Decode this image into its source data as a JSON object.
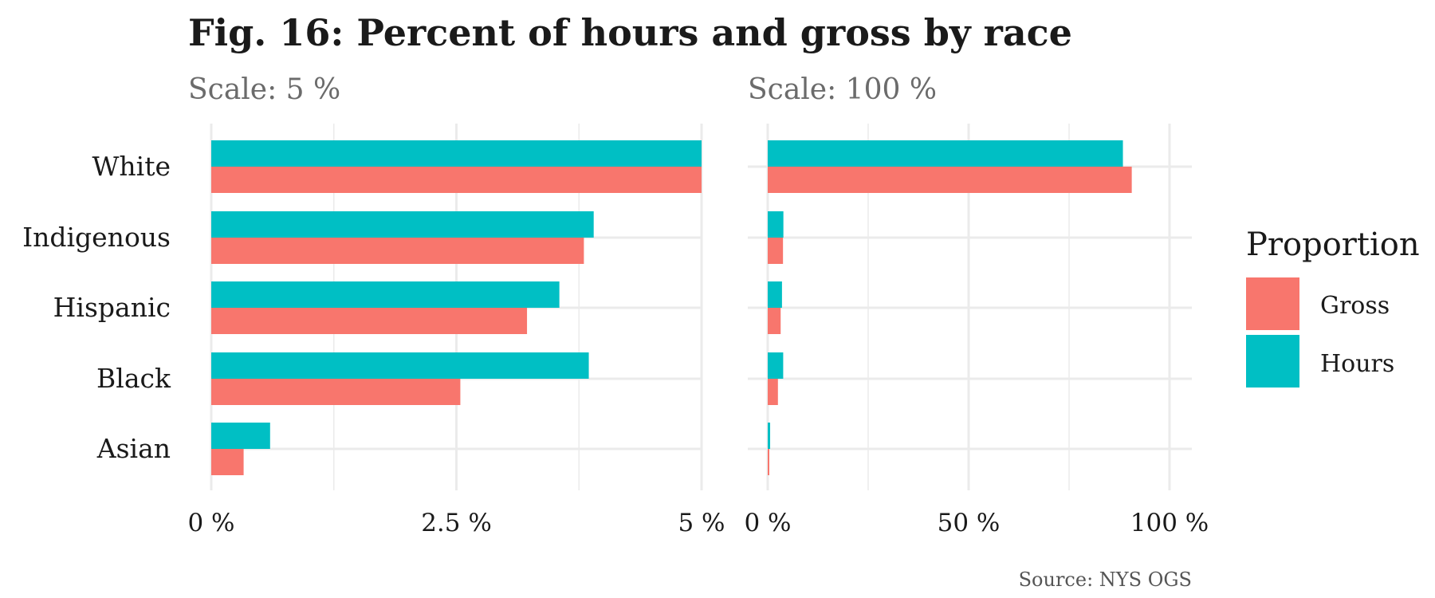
{
  "chart_data": {
    "type": "bar",
    "orientation": "horizontal",
    "title": "Fig. 16: Percent of hours and gross by race",
    "caption": "Source: NYS OGS",
    "categories": [
      "White",
      "Indigenous",
      "Hispanic",
      "Black",
      "Asian"
    ],
    "series": [
      {
        "name": "Hours",
        "color": "#00BFC4",
        "values": [
          88.4,
          3.9,
          3.55,
          3.85,
          0.6
        ]
      },
      {
        "name": "Gross",
        "color": "#F8766D",
        "values": [
          90.6,
          3.8,
          3.22,
          2.54,
          0.33
        ]
      }
    ],
    "legend": {
      "title": "Proportion",
      "placement": "right",
      "entries": [
        {
          "label": "Gross",
          "color": "#F8766D"
        },
        {
          "label": "Hours",
          "color": "#00BFC4"
        }
      ]
    },
    "panels": [
      {
        "subtitle": "Scale: 5 %",
        "xlim": [
          0,
          5
        ],
        "ticks": [
          0,
          2.5,
          5
        ],
        "tick_labels": [
          "0 %",
          "2.5 %",
          "5 %"
        ]
      },
      {
        "subtitle": "Scale: 100 %",
        "xlim": [
          0,
          100
        ],
        "ticks": [
          0,
          50,
          100
        ],
        "tick_labels": [
          "0 %",
          "50 %",
          "100 %"
        ]
      }
    ],
    "grid": true
  }
}
